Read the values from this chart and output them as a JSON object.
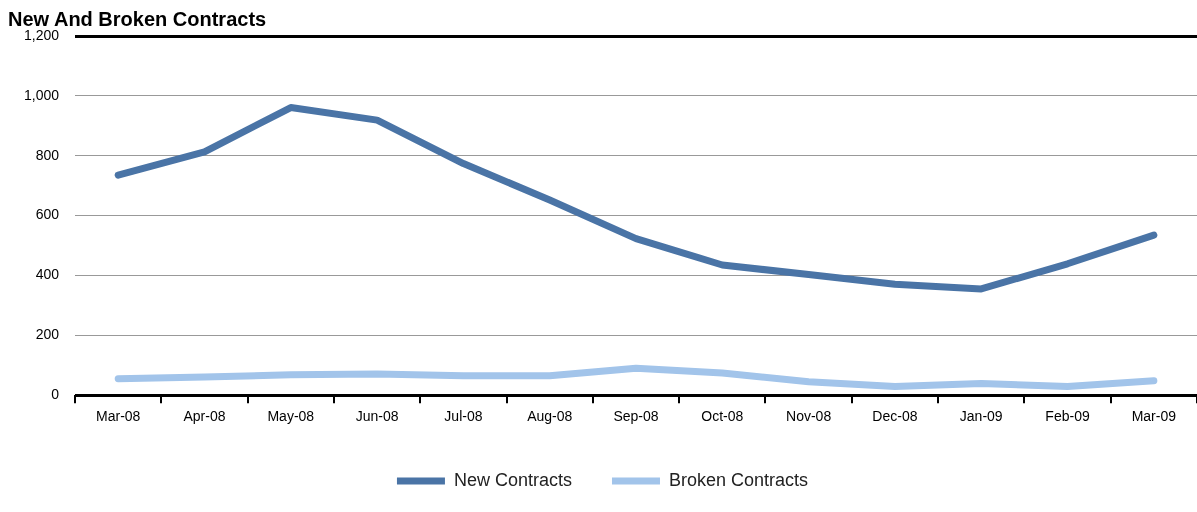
{
  "chart_data": {
    "type": "line",
    "title": "New And Broken Contracts",
    "categories": [
      "Mar-08",
      "Apr-08",
      "May-08",
      "Jun-08",
      "Jul-08",
      "Aug-08",
      "Sep-08",
      "Oct-08",
      "Nov-08",
      "Dec-08",
      "Jan-09",
      "Feb-09",
      "Mar-09"
    ],
    "series": [
      {
        "name": "New Contracts",
        "color": "#4a74a6",
        "values": [
          735,
          813,
          961,
          919,
          774,
          652,
          523,
          435,
          403,
          371,
          355,
          439,
          535
        ]
      },
      {
        "name": "Broken Contracts",
        "color": "#a2c4ea",
        "values": [
          55,
          61,
          68,
          71,
          65,
          65,
          90,
          74,
          45,
          29,
          39,
          29,
          48
        ]
      }
    ],
    "ylim": [
      0,
      1200
    ],
    "yticks": [
      0,
      200,
      400,
      600,
      800,
      {
        "value": 1000,
        "label": "1,000"
      },
      {
        "value": 1200,
        "label": "1,200"
      }
    ],
    "grid": "y",
    "legend": "bottom",
    "marker": "none",
    "line_style": "solid"
  }
}
